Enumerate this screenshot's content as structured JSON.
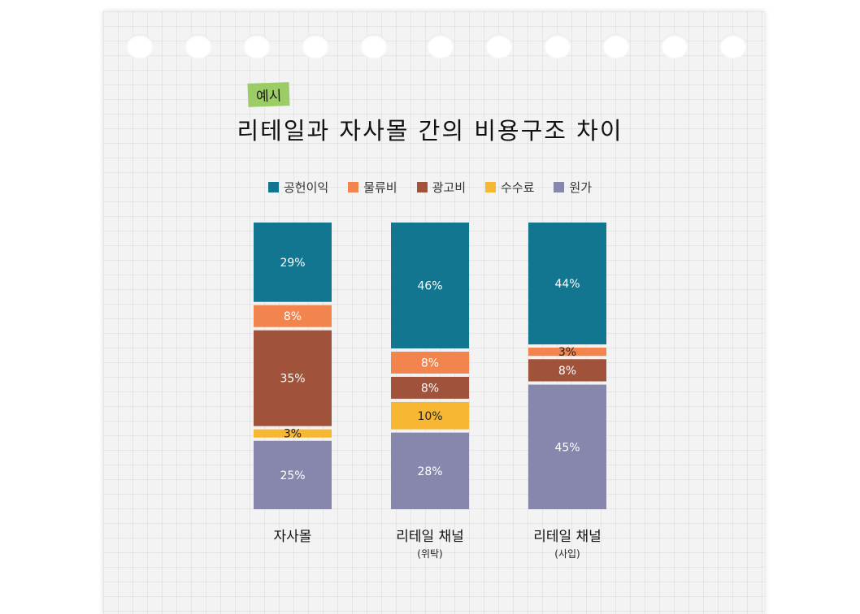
{
  "tag": "예시",
  "title": "리테일과 자사몰 간의 비용구조 차이",
  "chart_data": {
    "type": "bar",
    "stacked": true,
    "categories": [
      {
        "name": "자사몰",
        "sub": ""
      },
      {
        "name": "리테일 채널",
        "sub": "(위탁)"
      },
      {
        "name": "리테일 채널",
        "sub": "(사입)"
      }
    ],
    "series": [
      {
        "name": "공헌이익",
        "color": "#137690",
        "values": [
          29,
          46,
          44
        ]
      },
      {
        "name": "물류비",
        "color": "#f2844e",
        "values": [
          8,
          8,
          3
        ]
      },
      {
        "name": "광고비",
        "color": "#a0533a",
        "values": [
          35,
          8,
          8
        ]
      },
      {
        "name": "수수료",
        "color": "#f7b733",
        "values": [
          3,
          10,
          0
        ]
      },
      {
        "name": "원가",
        "color": "#8787ad",
        "values": [
          25,
          28,
          45
        ]
      }
    ],
    "value_suffix": "%",
    "legend": "top",
    "ylim": [
      0,
      100
    ]
  }
}
